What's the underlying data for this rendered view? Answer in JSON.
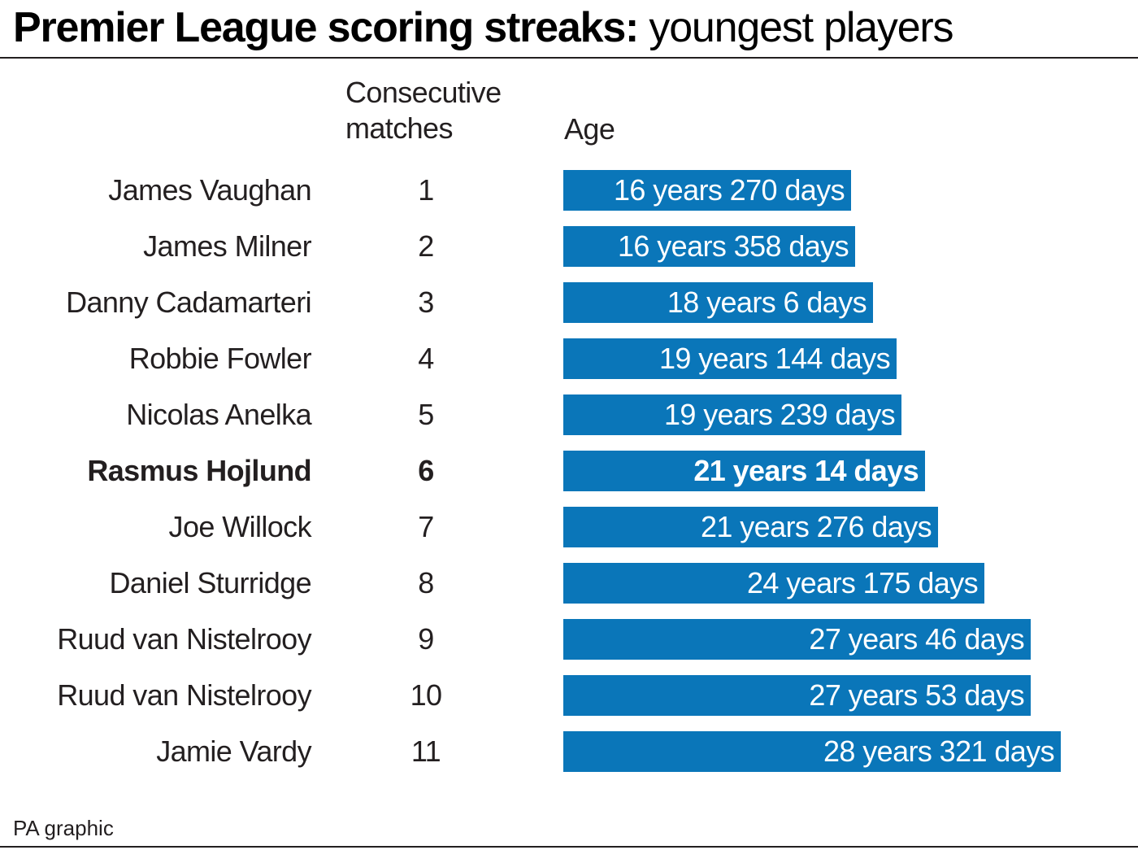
{
  "title": {
    "bold": "Premier League scoring streaks:",
    "light": " youngest players"
  },
  "columns": {
    "matches": "Consecutive matches",
    "age": "Age"
  },
  "source": "PA graphic",
  "colors": {
    "bar": "#0a76b9",
    "text": "#231f20",
    "bar_text": "#ffffff"
  },
  "chart_data": {
    "type": "bar",
    "orientation": "horizontal",
    "categories": [
      "James Vaughan",
      "James Milner",
      "Danny Cadamarteri",
      "Robbie Fowler",
      "Nicolas Anelka",
      "Rasmus Hojlund",
      "Joe Willock",
      "Daniel Sturridge",
      "Ruud van Nistelrooy",
      "Ruud van Nistelrooy",
      "Jamie Vardy"
    ],
    "consecutive_matches": [
      "1",
      "2",
      "3",
      "4",
      "5",
      "6",
      "7",
      "8",
      "9",
      "10",
      "11"
    ],
    "labels": [
      "16 years 270 days",
      "16 years 358 days",
      "18 years 6 days",
      "19 years 144 days",
      "19 years 239 days",
      "21 years 14 days",
      "21 years 276 days",
      "24 years 175 days",
      "27 years 46 days",
      "27 years 53 days",
      "28 years 321 days"
    ],
    "values": [
      16.74,
      16.98,
      18.02,
      19.39,
      19.65,
      21.04,
      21.76,
      24.48,
      27.13,
      27.15,
      28.88
    ],
    "highlight": "Rasmus Hojlund",
    "grid": false,
    "legend": "none"
  }
}
